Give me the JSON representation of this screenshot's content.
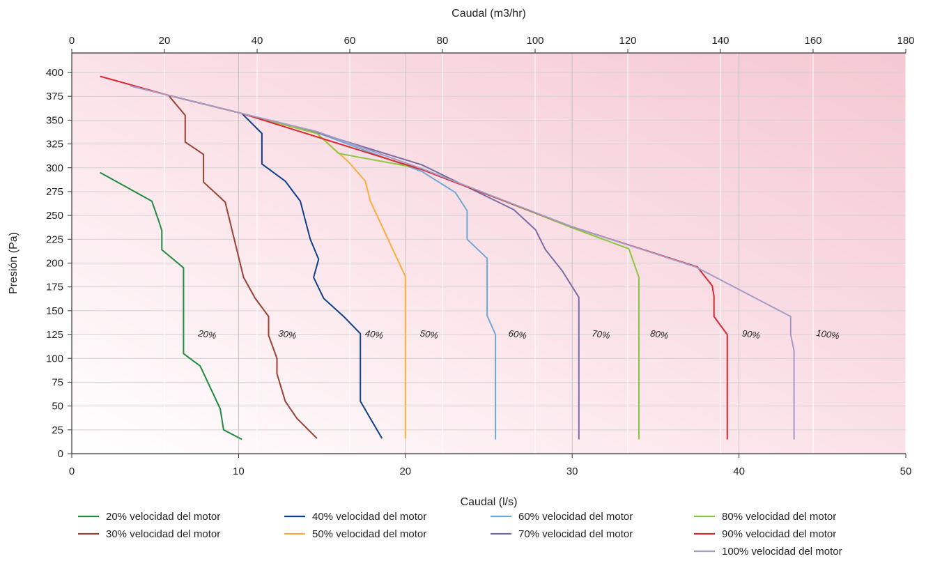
{
  "chart_data": {
    "type": "line",
    "xlabel": "Caudal (l/s)",
    "x2label": "Caudal (m3/hr)",
    "ylabel": "Presión (Pa)",
    "xlim": [
      0,
      50
    ],
    "x2lim": [
      0,
      180
    ],
    "ylim": [
      0,
      410
    ],
    "xticks": [
      0,
      10,
      20,
      30,
      40,
      50
    ],
    "x2ticks": [
      0,
      20,
      40,
      60,
      80,
      100,
      120,
      140,
      160,
      180
    ],
    "yticks": [
      0,
      25,
      50,
      75,
      100,
      125,
      150,
      175,
      200,
      225,
      250,
      275,
      300,
      325,
      350,
      375,
      400
    ],
    "grid": true,
    "legend_position": "bottom",
    "colors": {
      "background_light": "#ffffff",
      "background_dark": "#f5c8d2",
      "grid": "#d2d2d2",
      "axis": "#333333"
    },
    "series": [
      {
        "name": "20% velocidad del motor",
        "label": "20%",
        "color": "#1f8a3e",
        "points": [
          [
            1.7,
            295
          ],
          [
            4.8,
            265
          ],
          [
            5.2,
            245
          ],
          [
            5.4,
            234
          ],
          [
            5.4,
            214
          ],
          [
            6.7,
            195
          ],
          [
            6.7,
            105
          ],
          [
            7.7,
            92
          ],
          [
            8.9,
            47
          ],
          [
            9.1,
            25
          ],
          [
            10.2,
            15
          ]
        ]
      },
      {
        "name": "30% velocidad del motor",
        "label": "30%",
        "color": "#9a4030",
        "points": [
          [
            5.8,
            376
          ],
          [
            6.8,
            355
          ],
          [
            6.8,
            327
          ],
          [
            7.9,
            314
          ],
          [
            7.9,
            285
          ],
          [
            9.2,
            264
          ],
          [
            10.3,
            185
          ],
          [
            11.0,
            163
          ],
          [
            11.8,
            144
          ],
          [
            11.8,
            124
          ],
          [
            12.3,
            100
          ],
          [
            12.3,
            84
          ],
          [
            12.8,
            55
          ],
          [
            13.5,
            37
          ],
          [
            14.7,
            16
          ]
        ]
      },
      {
        "name": "40% velocidad del motor",
        "label": "40%",
        "color": "#0e3d8c",
        "points": [
          [
            5.8,
            376
          ],
          [
            10.2,
            357
          ],
          [
            11.4,
            336
          ],
          [
            11.4,
            304
          ],
          [
            12.8,
            286
          ],
          [
            13.7,
            265
          ],
          [
            14.3,
            225
          ],
          [
            14.8,
            204
          ],
          [
            14.5,
            185
          ],
          [
            15.1,
            163
          ],
          [
            16.3,
            144
          ],
          [
            17.3,
            126
          ],
          [
            17.3,
            104
          ],
          [
            17.3,
            55
          ],
          [
            17.9,
            37
          ],
          [
            18.6,
            16
          ]
        ]
      },
      {
        "name": "50% velocidad del motor",
        "label": "50%",
        "color": "#f9ad3c",
        "points": [
          [
            5.8,
            376
          ],
          [
            10.2,
            357
          ],
          [
            14.7,
            336
          ],
          [
            16.6,
            306
          ],
          [
            17.6,
            286
          ],
          [
            17.9,
            265
          ],
          [
            20.0,
            186
          ],
          [
            20.0,
            16
          ]
        ]
      },
      {
        "name": "60% velocidad del motor",
        "label": "60%",
        "color": "#6fa8d4",
        "points": [
          [
            5.8,
            376
          ],
          [
            10.2,
            357
          ],
          [
            14.7,
            337
          ],
          [
            21.0,
            296
          ],
          [
            23.0,
            274
          ],
          [
            23.7,
            255
          ],
          [
            23.7,
            225
          ],
          [
            24.9,
            205
          ],
          [
            24.9,
            145
          ],
          [
            25.4,
            125
          ],
          [
            25.4,
            15
          ]
        ]
      },
      {
        "name": "70% velocidad del motor",
        "label": "70%",
        "color": "#7b6ba3",
        "points": [
          [
            3.5,
            386
          ],
          [
            5.8,
            376
          ],
          [
            10.2,
            357
          ],
          [
            14.7,
            337
          ],
          [
            21.0,
            303
          ],
          [
            26.5,
            256
          ],
          [
            27.8,
            235
          ],
          [
            28.4,
            214
          ],
          [
            29.4,
            192
          ],
          [
            30.4,
            164
          ],
          [
            30.4,
            15
          ]
        ]
      },
      {
        "name": "80%  velocidad  del  motor",
        "label": "80%",
        "color": "#8cc63f",
        "points": [
          [
            5.8,
            376
          ],
          [
            10.2,
            357
          ],
          [
            14.7,
            336
          ],
          [
            16.0,
            315
          ],
          [
            21.0,
            299
          ],
          [
            30.0,
            237
          ],
          [
            33.4,
            215
          ],
          [
            34.0,
            185
          ],
          [
            34.0,
            15
          ]
        ]
      },
      {
        "name": "90%  velocidad del motor",
        "label": "90%",
        "color": "#e0262f",
        "points": [
          [
            1.7,
            396
          ],
          [
            5.8,
            376
          ],
          [
            10.2,
            357
          ],
          [
            21.0,
            298
          ],
          [
            30.0,
            238
          ],
          [
            37.5,
            196
          ],
          [
            38.4,
            176
          ],
          [
            38.5,
            165
          ],
          [
            38.5,
            144
          ],
          [
            39.3,
            125
          ],
          [
            39.3,
            15
          ]
        ]
      },
      {
        "name": "100% velocidad del motor",
        "label": "100%",
        "color": "#a39cc4",
        "points": [
          [
            3.5,
            386
          ],
          [
            5.8,
            376
          ],
          [
            10.2,
            357
          ],
          [
            14.7,
            338
          ],
          [
            21.0,
            299
          ],
          [
            30.0,
            238
          ],
          [
            37.4,
            196
          ],
          [
            43.1,
            144
          ],
          [
            43.1,
            125
          ],
          [
            43.3,
            108
          ],
          [
            43.3,
            15
          ]
        ]
      }
    ]
  }
}
